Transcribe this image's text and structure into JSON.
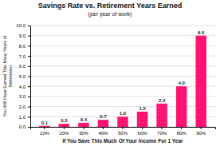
{
  "chart_data": {
    "type": "bar",
    "title": "Savings Rate vs. Retirement Years Earned",
    "subtitle": "(per year of work)",
    "xlabel": "If You Save This Much Of Your Income For 1 Year",
    "ylabel": "You Will Have Earned This Many Years of\nRetirement",
    "categories": [
      "10%",
      "20%",
      "30%",
      "40%",
      "50%",
      "60%",
      "70%",
      "80%",
      "90%"
    ],
    "values": [
      0.1,
      0.3,
      0.4,
      0.7,
      1.0,
      1.5,
      2.3,
      4.0,
      9.0
    ],
    "value_labels": [
      "0.1",
      "0.3",
      "0.4",
      "0.7",
      "1.0",
      "1.5",
      "2.3",
      "4.0",
      "9.0"
    ],
    "color": "#FF1473",
    "ylim": [
      0,
      10.0
    ],
    "yticks": [
      {
        "value": 0,
        "label": "0.0"
      },
      {
        "value": 1,
        "label": "1.0"
      },
      {
        "value": 2,
        "label": "2.0"
      },
      {
        "value": 3,
        "label": "3.0"
      },
      {
        "value": 4,
        "label": "4.0"
      },
      {
        "value": 5,
        "label": "5.0"
      },
      {
        "value": 6,
        "label": "6.0"
      },
      {
        "value": 7,
        "label": "7.0"
      },
      {
        "value": 8,
        "label": "8.0"
      },
      {
        "value": 9,
        "label": "9.0"
      },
      {
        "value": 10,
        "label": "10.0"
      }
    ],
    "grid": true,
    "data_labels": true
  }
}
